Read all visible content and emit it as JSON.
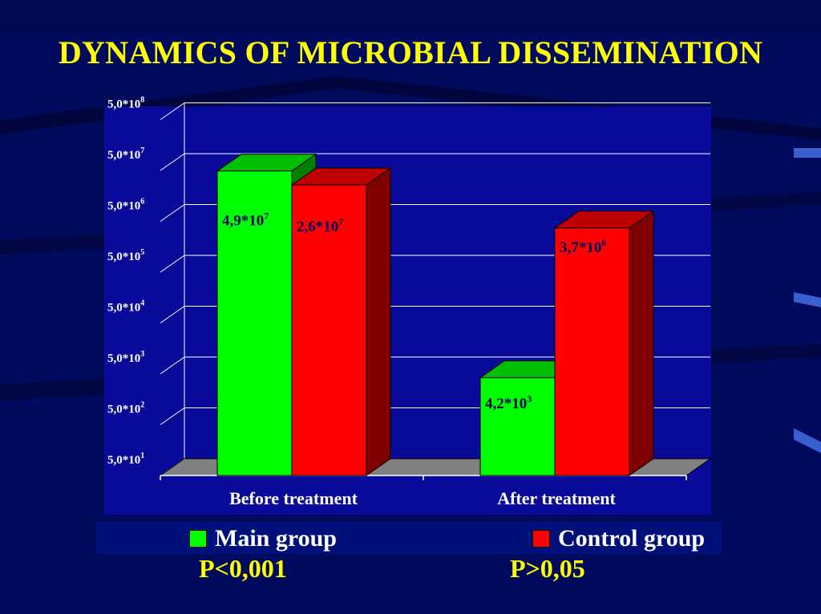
{
  "title": "DYNAMICS OF MICROBIAL DISSEMINATION",
  "colors": {
    "background": "#000a5c",
    "plot_area": "#0a0a9a",
    "main_group": "#00ff00",
    "control_group": "#ff0000",
    "title": "#ffff00",
    "floor": "#808080"
  },
  "chart_data": {
    "type": "bar",
    "scale": "log",
    "title": "DYNAMICS OF MICROBIAL DISSEMINATION",
    "xlabel": "",
    "ylabel": "",
    "categories": [
      "Before treatment",
      "After treatment"
    ],
    "series": [
      {
        "name": "Main group",
        "values": [
          49000000.0,
          4200.0
        ],
        "labels": [
          [
            "4,9*10",
            "7"
          ],
          [
            "4,2*10",
            "3"
          ]
        ]
      },
      {
        "name": "Control group",
        "values": [
          26000000.0,
          3700000.0
        ],
        "labels": [
          [
            "2,6*10",
            "7"
          ],
          [
            "3,7*10",
            "6"
          ]
        ]
      }
    ],
    "y_ticks": [
      {
        "value": 50.0,
        "base": "5,0*10",
        "exp": "1"
      },
      {
        "value": 500.0,
        "base": "5,0*10",
        "exp": "2"
      },
      {
        "value": 5000.0,
        "base": "5,0*10",
        "exp": "3"
      },
      {
        "value": 50000.0,
        "base": "5,0*10",
        "exp": "4"
      },
      {
        "value": 500000.0,
        "base": "5,0*10",
        "exp": "5"
      },
      {
        "value": 5000000.0,
        "base": "5,0*10",
        "exp": "6"
      },
      {
        "value": 50000000.0,
        "base": "5,0*10",
        "exp": "7"
      },
      {
        "value": 500000000.0,
        "base": "5,0*10",
        "exp": "8"
      }
    ],
    "ylim": [
      50.0,
      500000000.0
    ],
    "grid": true,
    "legend_position": "bottom"
  },
  "legend": {
    "main_group": "Main group",
    "control_group": "Control group"
  },
  "p_values": {
    "main": "P<0,001",
    "control": "P>0,05"
  }
}
